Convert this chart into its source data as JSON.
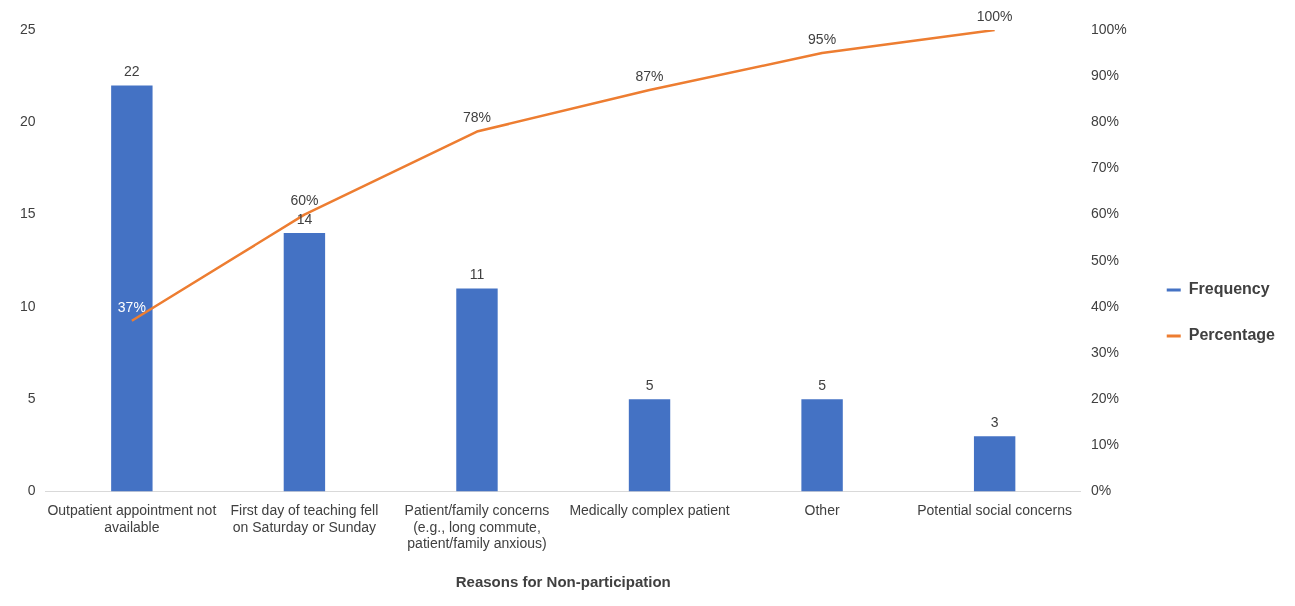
{
  "chart_data": {
    "type": "bar",
    "xlabel": "Reasons for Non-participation",
    "categories": [
      "Outpatient appointment not available",
      "First day of teaching fell on Saturday or Sunday",
      "Patient/family concerns (e.g., long commute, patient/family anxious)",
      "Medically complex patient",
      "Other",
      "Potential social concerns"
    ],
    "series": [
      {
        "name": "Frequency",
        "color": "#4472c4",
        "values": [
          22,
          14,
          11,
          5,
          5,
          3
        ],
        "value_labels": [
          "22",
          "14",
          "11",
          "5",
          "5",
          "3"
        ]
      },
      {
        "name": "Percentage",
        "type": "line",
        "axis": "y2",
        "color": "#ed7d31",
        "values": [
          37,
          60,
          78,
          87,
          95,
          100
        ],
        "value_labels": [
          "37%",
          "60%",
          "78%",
          "87%",
          "95%",
          "100%"
        ]
      }
    ],
    "ylim": [
      0,
      25
    ],
    "yticks": [
      0,
      5,
      10,
      15,
      20,
      25
    ],
    "y2lim": [
      0,
      100
    ],
    "y2ticks": [
      {
        "value": 0,
        "label": "0%"
      },
      {
        "value": 10,
        "label": "10%"
      },
      {
        "value": 20,
        "label": "20%"
      },
      {
        "value": 30,
        "label": "30%"
      },
      {
        "value": 40,
        "label": "40%"
      },
      {
        "value": 50,
        "label": "50%"
      },
      {
        "value": 60,
        "label": "60%"
      },
      {
        "value": 70,
        "label": "70%"
      },
      {
        "value": 80,
        "label": "80%"
      },
      {
        "value": 90,
        "label": "90%"
      },
      {
        "value": 100,
        "label": "100%"
      }
    ],
    "grid": false,
    "legend": "right",
    "marker": "none",
    "line_style": "solid"
  }
}
